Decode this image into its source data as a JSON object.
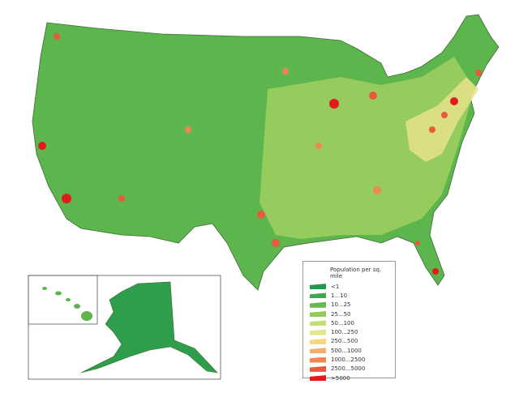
{
  "legend": {
    "title": "Population per sq. mile",
    "items": [
      {
        "label": "<1",
        "color": "#1e9a4a"
      },
      {
        "label": "1...10",
        "color": "#3fa84f"
      },
      {
        "label": "10...25",
        "color": "#66b950"
      },
      {
        "label": "25...50",
        "color": "#92cc55"
      },
      {
        "label": "50...100",
        "color": "#c2e07a"
      },
      {
        "label": "100...250",
        "color": "#e2e58a"
      },
      {
        "label": "250...500",
        "color": "#f7d581"
      },
      {
        "label": "500...1000",
        "color": "#f4ad6a"
      },
      {
        "label": "1000...2500",
        "color": "#ef8855"
      },
      {
        "label": "2500...5000",
        "color": "#e75a3c"
      },
      {
        "label": ">5000",
        "color": "#e31a1c"
      }
    ]
  },
  "colors": {
    "water": "#ffffff",
    "border": "#4a6a3a",
    "inset_frame": "#555555"
  }
}
